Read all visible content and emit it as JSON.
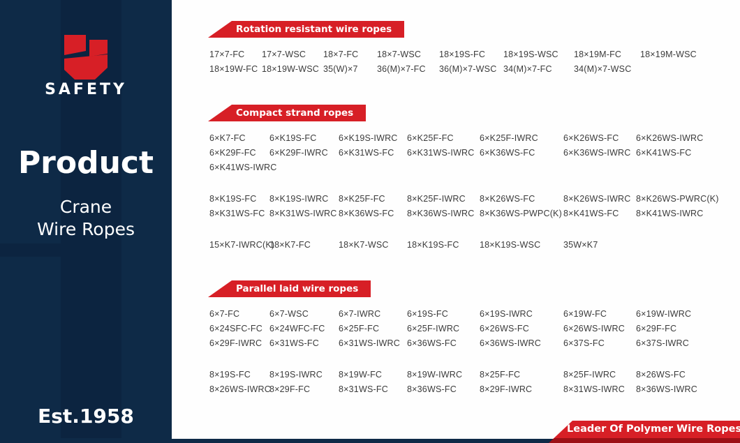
{
  "sidebar": {
    "brand": "SAFETY",
    "heading": "Product",
    "subheading_line1": "Crane",
    "subheading_line2": "Wire Ropes",
    "established": "Est.1958"
  },
  "sections": [
    {
      "title": "Rotation resistant wire ropes",
      "groups": [
        [
          [
            "17×7-FC",
            "17×7-WSC",
            "18×7-FC",
            "18×7-WSC",
            "18×19S-FC",
            "18×19S-WSC",
            "18×19M-FC",
            "18×19M-WSC"
          ],
          [
            "18×19W-FC",
            "18×19W-WSC",
            "35(W)×7",
            "36(M)×7-FC",
            "36(M)×7-WSC",
            "34(M)×7-FC",
            "34(M)×7-WSC"
          ]
        ]
      ]
    },
    {
      "title": "Compact strand ropes",
      "groups": [
        [
          [
            "6×K7-FC",
            "6×K19S-FC",
            "6×K19S-IWRC",
            "6×K25F-FC",
            "6×K25F-IWRC",
            "6×K26WS-FC",
            "6×K26WS-IWRC"
          ],
          [
            "6×K29F-FC",
            "6×K29F-IWRC",
            "6×K31WS-FC",
            "6×K31WS-IWRC",
            "6×K36WS-FC",
            "6×K36WS-IWRC",
            "6×K41WS-FC"
          ],
          [
            "6×K41WS-IWRC"
          ]
        ],
        [
          [
            "8×K19S-FC",
            "8×K19S-IWRC",
            "8×K25F-FC",
            "8×K25F-IWRC",
            "8×K26WS-FC",
            "8×K26WS-IWRC",
            "8×K26WS-PWRC(K)"
          ],
          [
            "8×K31WS-FC",
            "8×K31WS-IWRC",
            "8×K36WS-FC",
            "8×K36WS-IWRC",
            "8×K36WS-PWPC(K)",
            "8×K41WS-FC",
            "8×K41WS-IWRC"
          ]
        ],
        [
          [
            "15×K7-IWRC(K)",
            "18×K7-FC",
            "18×K7-WSC",
            "18×K19S-FC",
            "18×K19S-WSC",
            "35W×K7"
          ]
        ]
      ]
    },
    {
      "title": "Parallel laid wire ropes",
      "groups": [
        [
          [
            "6×7-FC",
            "6×7-WSC",
            "6×7-IWRC",
            "6×19S-FC",
            "6×19S-IWRC",
            "6×19W-FC",
            "6×19W-IWRC"
          ],
          [
            "6×24SFC-FC",
            "6×24WFC-FC",
            "6×25F-FC",
            "6×25F-IWRC",
            "6×26WS-FC",
            "6×26WS-IWRC",
            "6×29F-FC"
          ],
          [
            "6×29F-IWRC",
            "6×31WS-FC",
            "6×31WS-IWRC",
            "6×36WS-FC",
            "6×36WS-IWRC",
            "6×37S-FC",
            "6×37S-IWRC"
          ]
        ],
        [
          [
            "8×19S-FC",
            "8×19S-IWRC",
            "8×19W-FC",
            "8×19W-IWRC",
            "8×25F-FC",
            "8×25F-IWRC",
            "8×26WS-FC"
          ],
          [
            "8×26WS-IWRC",
            "8×29F-FC",
            "8×31WS-FC",
            "8×36WS-FC",
            "8×29F-IWRC",
            "8×31WS-IWRC",
            "8×36WS-IWRC"
          ]
        ]
      ]
    }
  ],
  "footer": {
    "banner": "Leader Of Polymer Wire Ropes"
  },
  "colors": {
    "navy": "#0e2a47",
    "navy_dark": "#0c2440",
    "red": "#d71f26",
    "red_dark": "#9c1016",
    "code_text": "#3b3b3b"
  }
}
